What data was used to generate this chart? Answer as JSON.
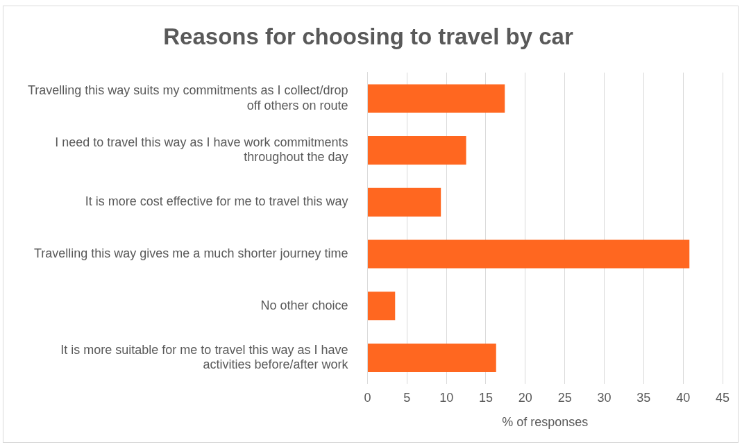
{
  "chart_data": {
    "type": "bar",
    "orientation": "horizontal",
    "title": "Reasons for choosing to travel by car",
    "xlabel": "% of responses",
    "categories": [
      "Travelling this way suits my commitments as I collect/drop off others on route",
      "I need to travel this way as I have work commitments throughout the day",
      "It is more cost effective for me to travel this way",
      "Travelling this way gives me a much shorter journey time",
      "No other choice",
      "It is more suitable for me to travel this way as I have activities before/after work"
    ],
    "values": [
      17.4,
      12.5,
      9.3,
      40.8,
      3.5,
      16.3
    ],
    "color": "#ff6720",
    "xlim": [
      0,
      45
    ],
    "xticks": [
      0,
      5,
      10,
      15,
      20,
      25,
      30,
      35,
      40,
      45
    ],
    "grid": "x",
    "legend": false
  }
}
